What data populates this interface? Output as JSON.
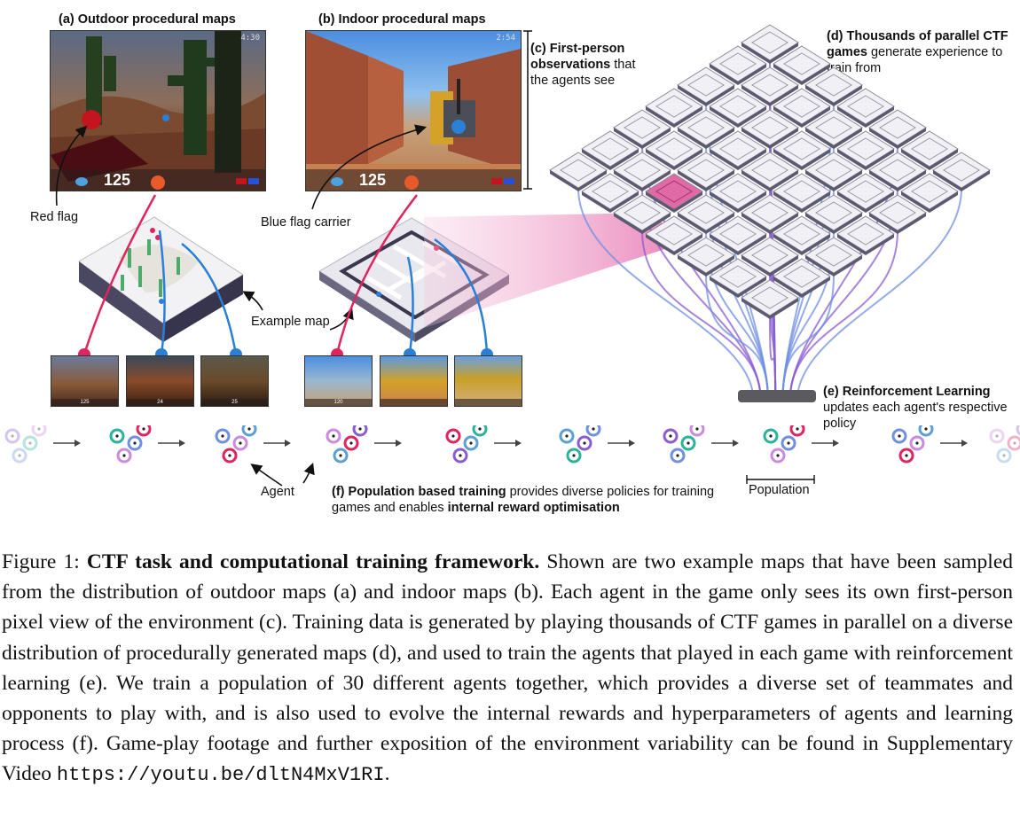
{
  "panels": {
    "a_prefix": "(a)",
    "a_title": "Outdoor procedural maps",
    "b_prefix": "(b)",
    "b_title": "Indoor procedural maps",
    "c_prefix": "(c)",
    "c_bold": "First-person observations",
    "c_rest": "that the agents see",
    "d_prefix": "(d)",
    "d_bold": "Thousands of parallel CTF games",
    "d_rest": "generate experience to train from",
    "e_prefix": "(e)",
    "e_bold": "Reinforcement Learning",
    "e_rest": "updates each agent's respective policy",
    "f_prefix": "(f)",
    "f_bold1": "Population based training",
    "f_mid": "provides diverse policies for training games and enables",
    "f_bold2": "internal reward optimisation"
  },
  "annotations": {
    "red_flag": "Red flag",
    "blue_flag_carrier": "Blue flag carrier",
    "example_map": "Example map",
    "agent": "Agent",
    "population": "Population"
  },
  "hud": {
    "a_health": "125",
    "b_health": "125",
    "a_clock": "4:30",
    "b_clock": "2:54",
    "thumb_values": [
      "125",
      "24",
      "25",
      "120",
      "",
      ""
    ]
  },
  "caption": {
    "label": "Figure 1:",
    "title": "CTF task and computational training framework.",
    "body": "Shown are two example maps that have been sampled from the distribution of outdoor maps (a) and indoor maps (b). Each agent in the game only sees its own first-person pixel view of the environment (c). Training data is generated by playing thousands of CTF games in parallel on a diverse distribution of procedurally generated maps (d), and used to train the agents that played in each game with reinforcement learning (e). We train a population of 30 different agents together, which provides a diverse set of teammates and opponents to play with, and is also used to evolve the internal rewards and hyperparameters of agents and learning process (f). Game-play footage and further exposition of the environment variability can be found in Supplementary Video",
    "url": "https://youtu.be/dltN4MxV1RI",
    "end": "."
  },
  "colors": {
    "red_team": "#e0245e",
    "blue_team": "#2a7fd6",
    "purple": "#8a5cd1",
    "teal": "#2bb39a",
    "highlight": "#e8a8cc"
  }
}
